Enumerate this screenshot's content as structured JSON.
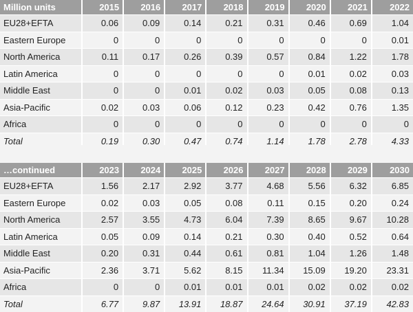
{
  "table1": {
    "header": [
      "Million units",
      "2015",
      "2016",
      "2017",
      "2018",
      "2019",
      "2020",
      "2021",
      "2022"
    ],
    "rows": [
      [
        "EU28+EFTA",
        "0.06",
        "0.09",
        "0.14",
        "0.21",
        "0.31",
        "0.46",
        "0.69",
        "1.04"
      ],
      [
        "Eastern Europe",
        "0",
        "0",
        "0",
        "0",
        "0",
        "0",
        "0",
        "0.01"
      ],
      [
        "North America",
        "0.11",
        "0.17",
        "0.26",
        "0.39",
        "0.57",
        "0.84",
        "1.22",
        "1.78"
      ],
      [
        "Latin America",
        "0",
        "0",
        "0",
        "0",
        "0",
        "0.01",
        "0.02",
        "0.03"
      ],
      [
        "Middle East",
        "0",
        "0",
        "0.01",
        "0.02",
        "0.03",
        "0.05",
        "0.08",
        "0.13"
      ],
      [
        "Asia-Pacific",
        "0.02",
        "0.03",
        "0.06",
        "0.12",
        "0.23",
        "0.42",
        "0.76",
        "1.35"
      ],
      [
        "Africa",
        "0",
        "0",
        "0",
        "0",
        "0",
        "0",
        "0",
        "0"
      ],
      [
        "Total",
        "0.19",
        "0.30",
        "0.47",
        "0.74",
        "1.14",
        "1.78",
        "2.78",
        "4.33"
      ]
    ]
  },
  "table2": {
    "header": [
      "…continued",
      "2023",
      "2024",
      "2025",
      "2026",
      "2027",
      "2028",
      "2029",
      "2030"
    ],
    "rows": [
      [
        "EU28+EFTA",
        "1.56",
        "2.17",
        "2.92",
        "3.77",
        "4.68",
        "5.56",
        "6.32",
        "6.85"
      ],
      [
        "Eastern Europe",
        "0.02",
        "0.03",
        "0.05",
        "0.08",
        "0.11",
        "0.15",
        "0.20",
        "0.24"
      ],
      [
        "North America",
        "2.57",
        "3.55",
        "4.73",
        "6.04",
        "7.39",
        "8.65",
        "9.67",
        "10.28"
      ],
      [
        "Latin America",
        "0.05",
        "0.09",
        "0.14",
        "0.21",
        "0.30",
        "0.40",
        "0.52",
        "0.64"
      ],
      [
        "Middle East",
        "0.20",
        "0.31",
        "0.44",
        "0.61",
        "0.81",
        "1.04",
        "1.26",
        "1.48"
      ],
      [
        "Asia-Pacific",
        "2.36",
        "3.71",
        "5.62",
        "8.15",
        "11.34",
        "15.09",
        "19.20",
        "23.31"
      ],
      [
        "Africa",
        "0",
        "0",
        "0.01",
        "0.01",
        "0.01",
        "0.02",
        "0.02",
        "0.02"
      ],
      [
        "Total",
        "6.77",
        "9.87",
        "13.91",
        "18.87",
        "24.64",
        "30.91",
        "37.19",
        "42.83"
      ]
    ]
  }
}
